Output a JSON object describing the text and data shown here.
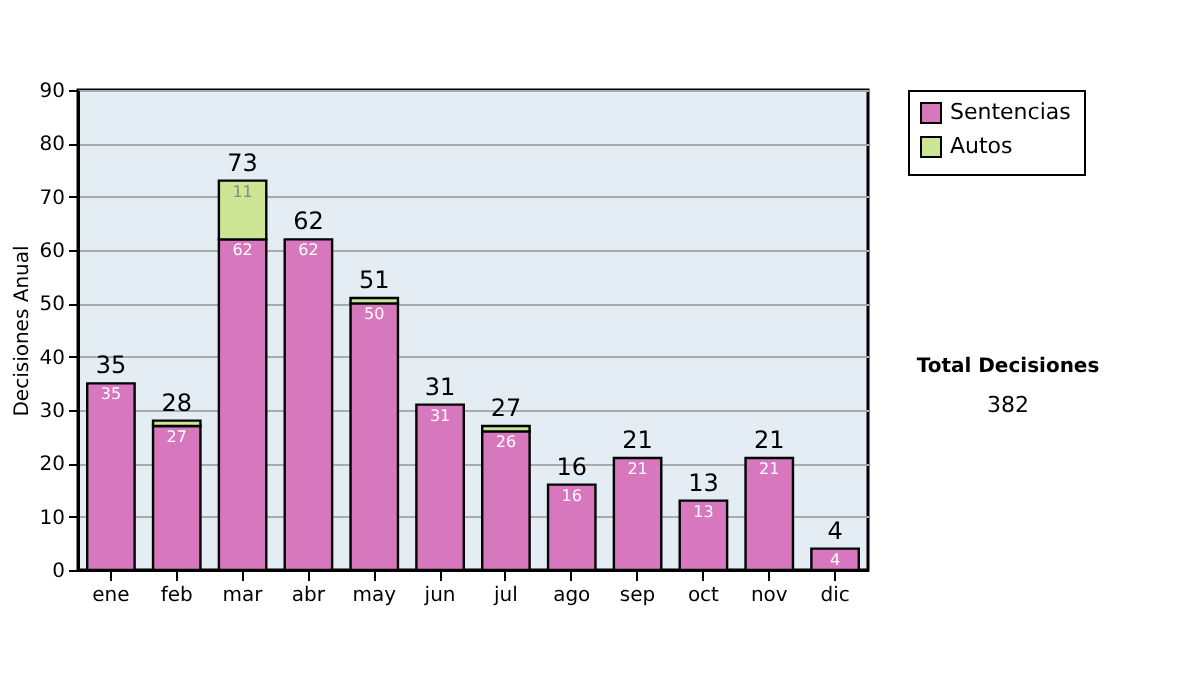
{
  "chart_data": {
    "type": "bar",
    "stacked": true,
    "ylabel": "Decisiones Anual",
    "categories": [
      "ene",
      "feb",
      "mar",
      "abr",
      "may",
      "jun",
      "jul",
      "ago",
      "sep",
      "oct",
      "nov",
      "dic"
    ],
    "series": [
      {
        "name": "Sentencias",
        "color": "#d778be",
        "values": [
          35,
          27,
          62,
          62,
          50,
          31,
          26,
          16,
          21,
          13,
          21,
          4
        ],
        "value_labels": [
          "35",
          "27",
          "62",
          "62",
          "50",
          "31",
          "26",
          "16",
          "21",
          "13",
          "21",
          "4"
        ]
      },
      {
        "name": "Autos",
        "color": "#cce695",
        "values": [
          0,
          1,
          11,
          0,
          1,
          0,
          1,
          0,
          0,
          0,
          0,
          0
        ],
        "value_labels": [
          null,
          null,
          "11",
          null,
          null,
          null,
          null,
          null,
          null,
          null,
          null,
          null
        ]
      }
    ],
    "totals": [
      "35",
      "28",
      "73",
      "62",
      "51",
      "31",
      "27",
      "16",
      "21",
      "13",
      "21",
      "4"
    ],
    "ylim": [
      0,
      90
    ],
    "yticks": [
      0,
      10,
      20,
      30,
      40,
      50,
      60,
      70,
      80,
      90
    ],
    "grid": "y",
    "legend": "right",
    "annotations": [
      "Total Decisiones",
      "382"
    ]
  }
}
